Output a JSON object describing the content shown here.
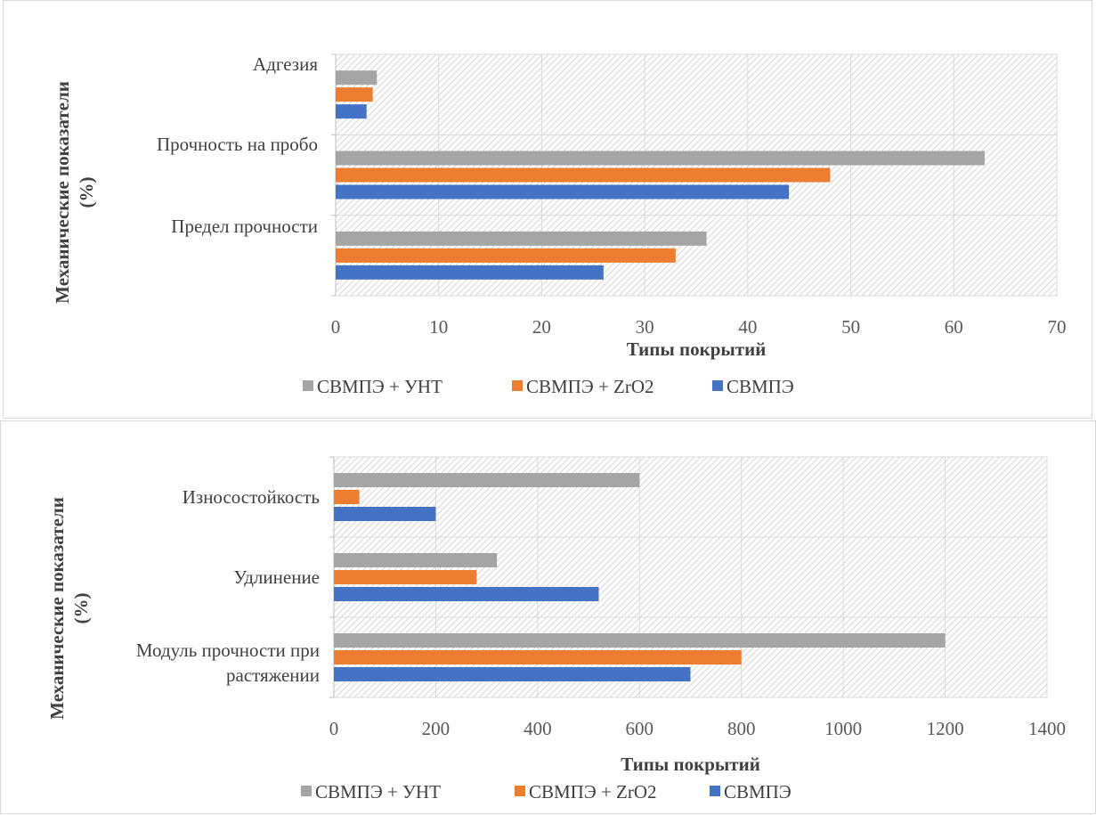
{
  "colors": {
    "series_gray": "#a5a5a5",
    "series_orange": "#ed7d31",
    "series_blue": "#4472c4"
  },
  "chart_data": [
    {
      "type": "bar",
      "orientation": "horizontal",
      "categories": [
        "Адгезия",
        "Прочность на пробо",
        "Предел прочности"
      ],
      "series": [
        {
          "name": "СВМПЭ + УНТ",
          "values": [
            4,
            63,
            36
          ]
        },
        {
          "name": "СВМПЭ + ZrO2",
          "values": [
            3.6,
            48,
            33
          ]
        },
        {
          "name": "СВМПЭ",
          "values": [
            3,
            44,
            26
          ]
        }
      ],
      "xlabel": "Типы покрытий",
      "ylabel": "Механические показатели (%)",
      "xlim": [
        0,
        70
      ],
      "xticks": [
        "0",
        "10",
        "20",
        "30",
        "40",
        "50",
        "60",
        "70"
      ],
      "grid": true,
      "legend": "bottom"
    },
    {
      "type": "bar",
      "orientation": "horizontal",
      "categories": [
        "Износостойкость",
        "Удлинение",
        "Модуль прочности при растяжении"
      ],
      "series": [
        {
          "name": "СВМПЭ + УНТ",
          "values": [
            600,
            320,
            1200
          ]
        },
        {
          "name": "СВМПЭ + ZrO2",
          "values": [
            50,
            280,
            800
          ]
        },
        {
          "name": "СВМПЭ",
          "values": [
            200,
            520,
            700
          ]
        }
      ],
      "xlabel": "Типы покрытий",
      "ylabel": "Механические показатели (%)",
      "xlim": [
        0,
        1400
      ],
      "xticks": [
        "0",
        "200",
        "400",
        "600",
        "800",
        "1000",
        "1200",
        "1400"
      ],
      "grid": true,
      "legend": "bottom"
    }
  ]
}
